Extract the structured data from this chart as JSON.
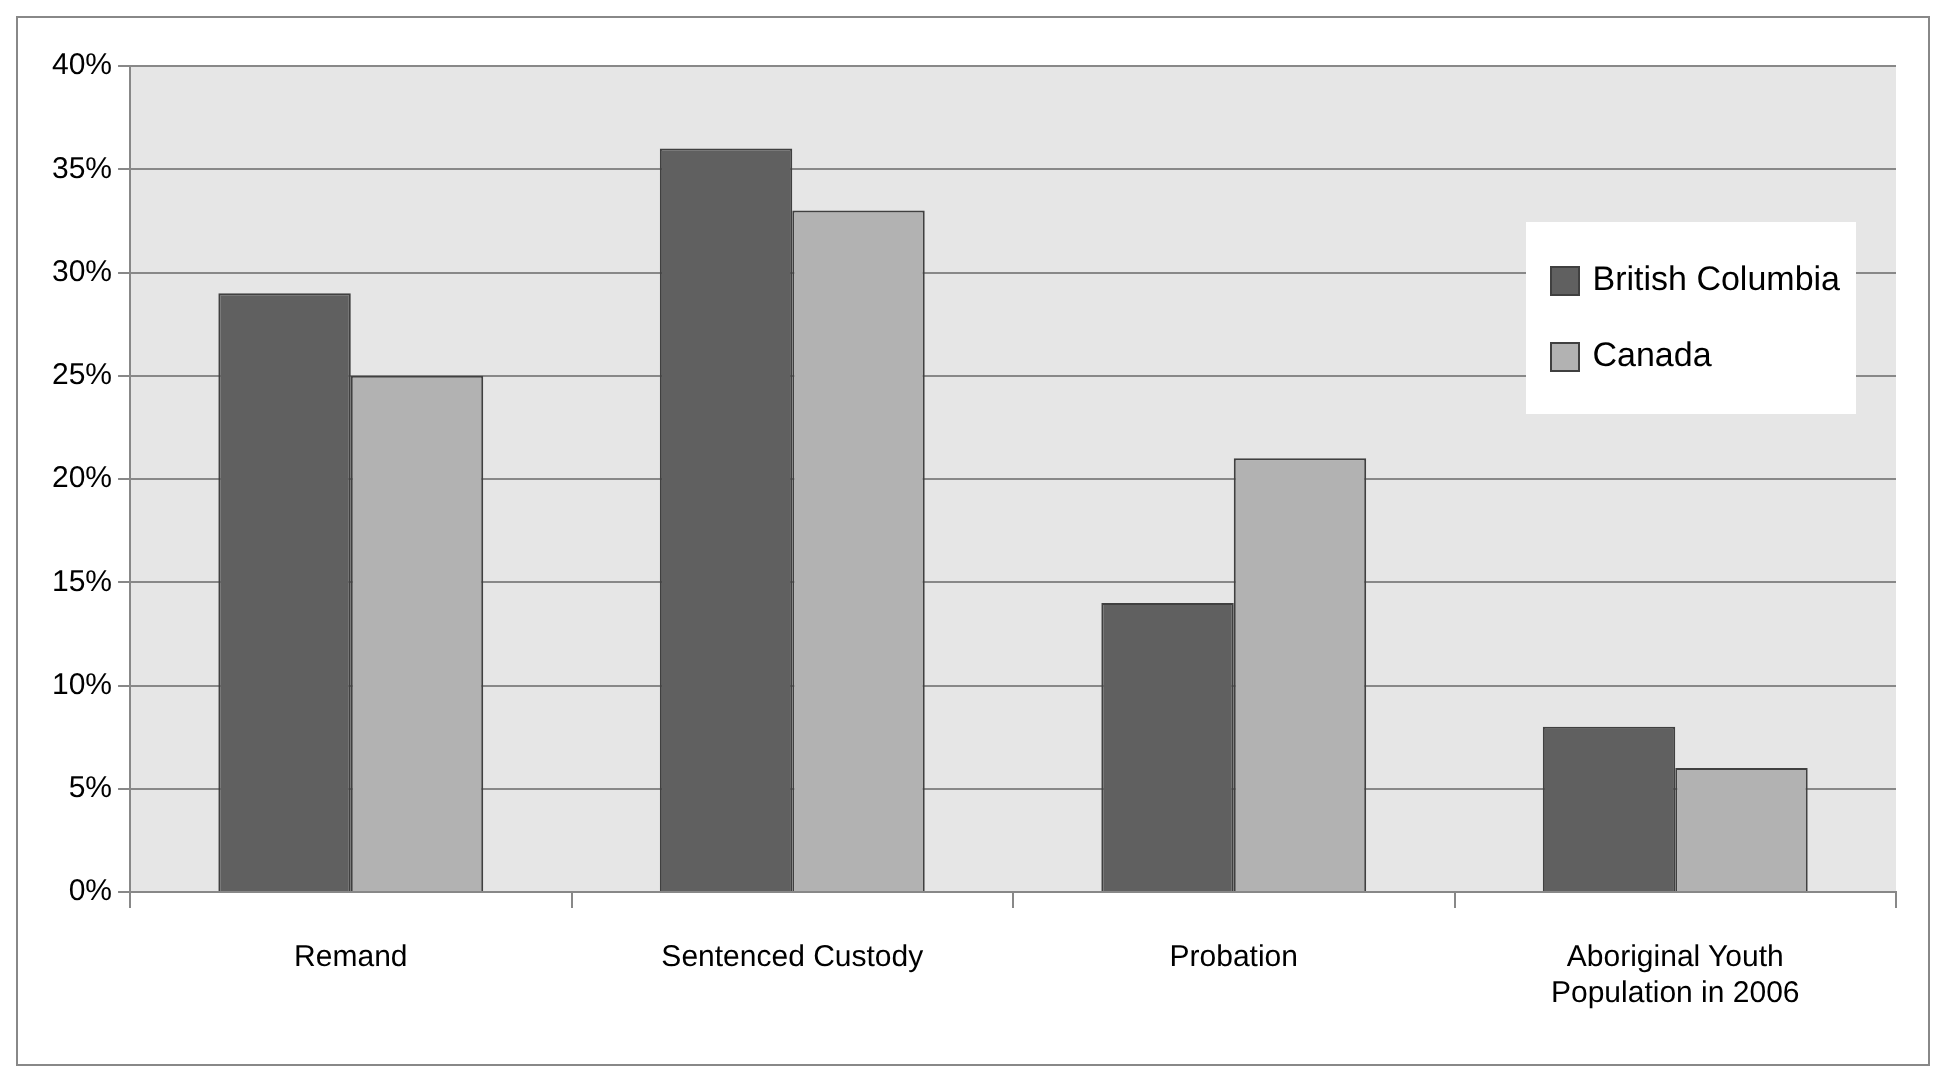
{
  "chart_data": {
    "type": "bar",
    "categories": [
      "Remand",
      "Sentenced Custody",
      "Probation",
      "Aboriginal Youth Population in 2006"
    ],
    "series": [
      {
        "name": "British Columbia",
        "color": "#606060",
        "values": [
          29,
          36,
          14,
          8
        ]
      },
      {
        "name": "Canada",
        "color": "#b2b2b2",
        "values": [
          25,
          33,
          21,
          6
        ]
      }
    ],
    "ylim": [
      0,
      40
    ],
    "yticks": [
      {
        "value": 0,
        "label": "0%"
      },
      {
        "value": 5,
        "label": "5%"
      },
      {
        "value": 10,
        "label": "10%"
      },
      {
        "value": 15,
        "label": "15%"
      },
      {
        "value": 20,
        "label": "20%"
      },
      {
        "value": 25,
        "label": "25%"
      },
      {
        "value": 30,
        "label": "30%"
      },
      {
        "value": 35,
        "label": "35%"
      },
      {
        "value": 40,
        "label": "40%"
      }
    ],
    "grid": "y",
    "legend": "top right"
  }
}
